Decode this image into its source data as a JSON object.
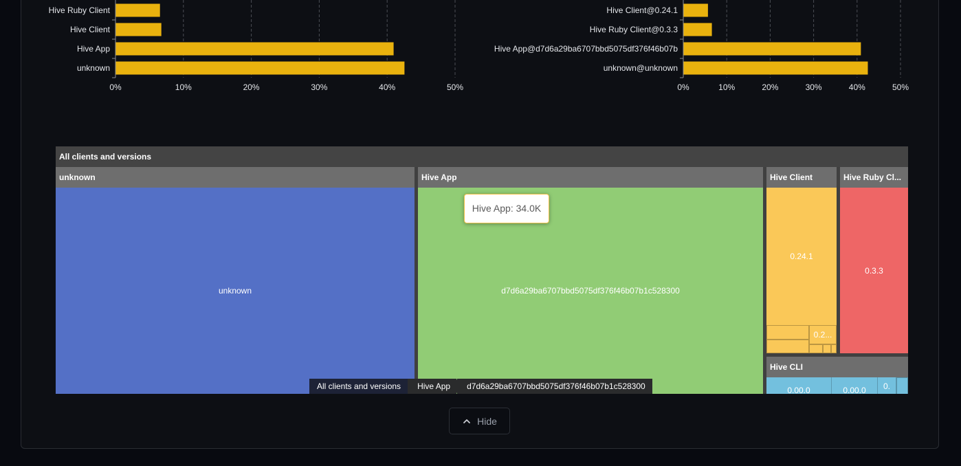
{
  "chart_data": [
    {
      "type": "bar",
      "orientation": "horizontal",
      "categories": [
        "Hive Ruby Client",
        "Hive Client",
        "Hive App",
        "unknown"
      ],
      "values": [
        6.5,
        6.7,
        40.9,
        42.5
      ],
      "xlim": [
        0,
        50
      ],
      "x_ticks": [
        "0%",
        "10%",
        "20%",
        "30%",
        "40%",
        "50%"
      ],
      "grid": true,
      "bar_color": "#e9b20e"
    },
    {
      "type": "bar",
      "orientation": "horizontal",
      "categories": [
        "Hive Client@0.24.1",
        "Hive Ruby Client@0.3.3",
        "Hive App@d7d6a29ba6707bbd5075df376f46b07b",
        "unknown@unknown"
      ],
      "values": [
        5.6,
        6.5,
        40.8,
        42.4
      ],
      "xlim": [
        0,
        50
      ],
      "x_ticks": [
        "0%",
        "10%",
        "20%",
        "30%",
        "40%",
        "50%"
      ],
      "grid": true,
      "bar_color": "#e9b20e"
    }
  ],
  "treemap": {
    "root_label": "All clients and versions",
    "groups": {
      "unknown": {
        "label": "unknown",
        "leaf": "unknown",
        "color": "#5470c6"
      },
      "hive_app": {
        "label": "Hive App",
        "leaf": "d7d6a29ba6707bbd5075df376f46b07b1c528300",
        "color": "#91cc75"
      },
      "hive_client": {
        "label": "Hive Client",
        "leaf": "0.24.1",
        "small_leaf": "0.2...",
        "color": "#fac858"
      },
      "hive_ruby": {
        "label": "Hive Ruby Cl...",
        "leaf": "0.3.3",
        "color": "#ee6666"
      },
      "hive_cli": {
        "label": "Hive CLI",
        "leaves": [
          "0.00.0",
          "0.00.0",
          "0."
        ],
        "color": "#73c0de"
      }
    }
  },
  "tooltip": {
    "text": "Hive App: 34.0K"
  },
  "breadcrumb": [
    "All clients and versions",
    "Hive App",
    "d7d6a29ba6707bbd5075df376f46b07b1c528300"
  ],
  "hide_button": {
    "label": "Hide",
    "icon": "chevron-up-icon"
  }
}
